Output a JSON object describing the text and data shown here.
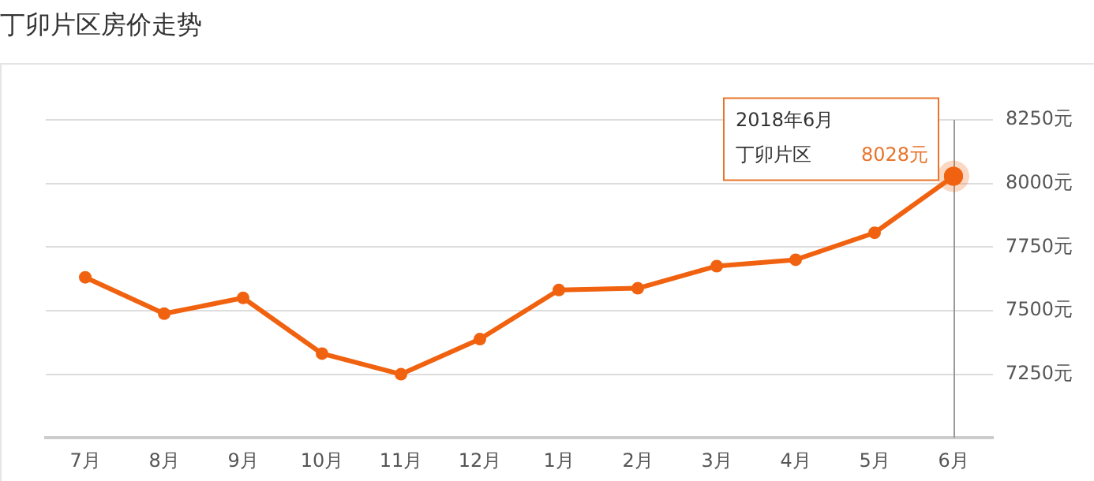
{
  "chart_data": {
    "type": "line",
    "title": "丁卯片区房价走势",
    "categories": [
      "7月",
      "8月",
      "9月",
      "10月",
      "11月",
      "12月",
      "1月",
      "2月",
      "3月",
      "4月",
      "5月",
      "6月"
    ],
    "series": [
      {
        "name": "丁卯片区",
        "color": "#f0620f",
        "values": [
          7631,
          7488,
          7550,
          7331,
          7250,
          7388,
          7581,
          7588,
          7675,
          7700,
          7806,
          8028
        ],
        "value_labels": [
          null,
          null,
          null,
          null,
          null,
          null,
          null,
          null,
          null,
          null,
          null,
          "8028元"
        ]
      }
    ],
    "ylim": [
      7000,
      8250
    ],
    "yticks": [
      {
        "value": 7250,
        "label": "7250元"
      },
      {
        "value": 7500,
        "label": "7500元"
      },
      {
        "value": 7750,
        "label": "7750元"
      },
      {
        "value": 8000,
        "label": "8000元"
      },
      {
        "value": 8250,
        "label": "8250元"
      }
    ],
    "annotations": [
      "2018年6月"
    ],
    "ref_lines": [
      {
        "axis": "x",
        "value": "6月",
        "color": "#999999"
      }
    ],
    "grid": "y",
    "marker": "circle",
    "line_style": "solid",
    "legend": false
  }
}
